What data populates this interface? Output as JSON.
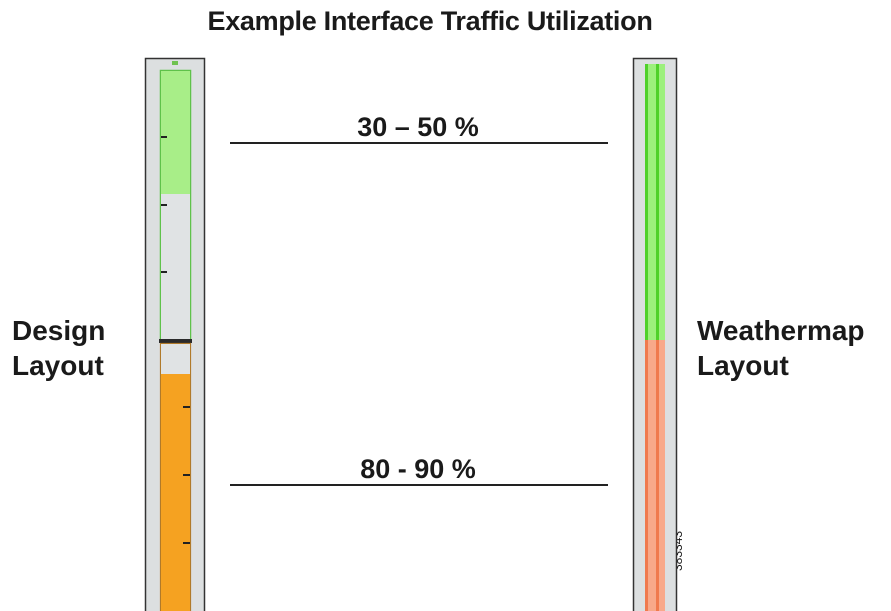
{
  "title": "Example Interface Traffic Utilization",
  "design_layout": {
    "label_line1": "Design",
    "label_line2": "Layout",
    "colors": {
      "frame_bg": "#dcdfe0",
      "frame_border": "#333333",
      "green_segment": "#a8ee88",
      "green_outline": "#5fc24a",
      "orange_segment": "#f5a221",
      "orange_outline": "#b07a2a",
      "empty_segment": "#e0e3e4"
    }
  },
  "weathermap_layout": {
    "label_line1": "Weathermap",
    "label_line2": "Layout",
    "colors": {
      "frame_bg": "#dcdfe0",
      "green_segment": "#9cf07c",
      "green_line": "#4fd12a",
      "orange_segment": "#f8a98a",
      "orange_line": "#f07a4e"
    }
  },
  "ranges": {
    "low": "30 – 50 %",
    "high": "80 - 90  %"
  },
  "figure_id": "383343"
}
